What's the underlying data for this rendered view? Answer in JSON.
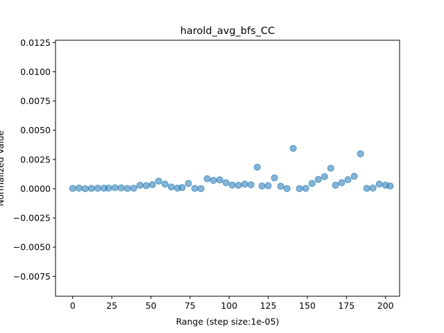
{
  "chart_data": {
    "type": "scatter",
    "title": "harold_avg_bfs_CC",
    "xlabel": "Range (step size:1e-05)",
    "ylabel": "Normalized Value",
    "xlim": [
      -11,
      209
    ],
    "ylim": [
      -0.0092,
      0.0127
    ],
    "xticks": [
      0,
      25,
      50,
      75,
      100,
      125,
      150,
      175,
      200
    ],
    "xtick_labels": [
      "0",
      "25",
      "50",
      "75",
      "100",
      "125",
      "150",
      "175",
      "200"
    ],
    "yticks": [
      -0.0075,
      -0.005,
      -0.0025,
      0.0,
      0.0025,
      0.005,
      0.0075,
      0.01,
      0.0125
    ],
    "ytick_labels": [
      "−0.0075",
      "−0.0050",
      "−0.0025",
      "0.0000",
      "0.0025",
      "0.0050",
      "0.0075",
      "0.0100",
      "0.0125"
    ],
    "grid": false,
    "marker_color": "#1f77b4",
    "marker_alpha": 0.55,
    "points": [
      [
        0,
        2e-05
      ],
      [
        4,
        5e-05
      ],
      [
        8,
        0.0
      ],
      [
        12,
        3e-05
      ],
      [
        16,
        4e-05
      ],
      [
        20,
        4e-05
      ],
      [
        23,
        5e-05
      ],
      [
        27,
        8e-05
      ],
      [
        31,
        7e-05
      ],
      [
        35,
        2e-05
      ],
      [
        39,
        4e-05
      ],
      [
        43,
        0.00029
      ],
      [
        47,
        0.00026
      ],
      [
        51,
        0.00035
      ],
      [
        55,
        0.00065
      ],
      [
        59,
        0.0004
      ],
      [
        63,
        0.00015
      ],
      [
        67,
        5e-05
      ],
      [
        70,
        0.0001
      ],
      [
        74,
        0.00045
      ],
      [
        78,
        3e-05
      ],
      [
        82,
        1e-05
      ],
      [
        86,
        0.00085
      ],
      [
        90,
        0.00071
      ],
      [
        94,
        0.00076
      ],
      [
        98,
        0.00052
      ],
      [
        102,
        0.00031
      ],
      [
        106,
        0.00029
      ],
      [
        110,
        0.00039
      ],
      [
        114,
        0.00034
      ],
      [
        118,
        0.00184
      ],
      [
        121,
        0.00023
      ],
      [
        125,
        0.00025
      ],
      [
        129,
        0.00093
      ],
      [
        133,
        0.00021
      ],
      [
        137,
        1e-05
      ],
      [
        141,
        0.00345
      ],
      [
        145,
        1e-05
      ],
      [
        149,
        3e-05
      ],
      [
        153,
        0.00045
      ],
      [
        157,
        0.00079
      ],
      [
        161,
        0.00103
      ],
      [
        165,
        0.00175
      ],
      [
        168,
        0.0003
      ],
      [
        172,
        0.00051
      ],
      [
        176,
        0.00077
      ],
      [
        180,
        0.00106
      ],
      [
        184,
        0.00298
      ],
      [
        188,
        3e-05
      ],
      [
        192,
        5e-05
      ],
      [
        196,
        0.00039
      ],
      [
        200,
        0.0003
      ],
      [
        203,
        0.00023
      ]
    ]
  }
}
